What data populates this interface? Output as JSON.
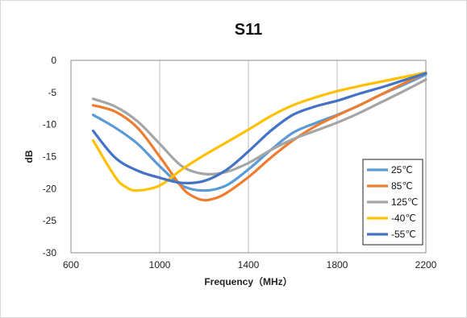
{
  "chart_data": {
    "type": "line",
    "title": "S11",
    "xlabel": "Frequency（MHz）",
    "ylabel": "dB",
    "xlim": [
      600,
      2200
    ],
    "ylim": [
      -30,
      0
    ],
    "xticks": [
      600,
      1000,
      1400,
      1800,
      2200
    ],
    "yticks": [
      0,
      -5,
      -10,
      -15,
      -20,
      -25,
      -30
    ],
    "grid": "vertical",
    "legend_position": "bottom-right",
    "series": [
      {
        "name": "25℃",
        "color": "#5b9bd5",
        "x": [
          700,
          800,
          900,
          1000,
          1100,
          1200,
          1300,
          1400,
          1500,
          1600,
          1700,
          1800,
          1900,
          2000,
          2100,
          2200
        ],
        "y": [
          -8.5,
          -10.5,
          -13,
          -16.5,
          -19.5,
          -20.3,
          -19.5,
          -17,
          -14,
          -11.3,
          -9.8,
          -8.5,
          -7,
          -5.3,
          -3.8,
          -2.2
        ]
      },
      {
        "name": "85℃",
        "color": "#ed7d31",
        "x": [
          700,
          800,
          900,
          1000,
          1100,
          1150,
          1200,
          1250,
          1300,
          1400,
          1500,
          1600,
          1700,
          1800,
          1900,
          2000,
          2100,
          2200
        ],
        "y": [
          -7,
          -8,
          -10.5,
          -15,
          -19.8,
          -21.2,
          -21.8,
          -21.5,
          -20.7,
          -18.2,
          -15.2,
          -12.5,
          -10.3,
          -8.6,
          -7,
          -5.3,
          -3.6,
          -1.9
        ]
      },
      {
        "name": "125℃",
        "color": "#a5a5a5",
        "x": [
          700,
          800,
          900,
          1000,
          1100,
          1200,
          1300,
          1400,
          1500,
          1600,
          1700,
          1800,
          1900,
          2000,
          2100,
          2200
        ],
        "y": [
          -6,
          -7.2,
          -9.5,
          -13,
          -16.5,
          -17.7,
          -17.4,
          -16,
          -14,
          -12.3,
          -11,
          -9.7,
          -8.2,
          -6.5,
          -4.8,
          -3
        ]
      },
      {
        "name": "-40℃",
        "color": "#ffc000",
        "x": [
          700,
          800,
          850,
          900,
          1000,
          1100,
          1200,
          1300,
          1400,
          1500,
          1600,
          1700,
          1800,
          1900,
          2000,
          2100,
          2200
        ],
        "y": [
          -12.5,
          -18.2,
          -19.8,
          -20.3,
          -19.5,
          -17,
          -14.8,
          -12.8,
          -10.8,
          -8.7,
          -7,
          -5.8,
          -4.8,
          -4,
          -3.3,
          -2.6,
          -1.9
        ]
      },
      {
        "name": "-55℃",
        "color": "#4472c4",
        "x": [
          700,
          800,
          900,
          1000,
          1100,
          1200,
          1300,
          1400,
          1500,
          1600,
          1700,
          1800,
          1900,
          2000,
          2100,
          2200
        ],
        "y": [
          -11,
          -15.2,
          -17.2,
          -18.3,
          -19.1,
          -18.8,
          -17.1,
          -14.2,
          -11,
          -8.5,
          -7.2,
          -6.3,
          -5.2,
          -4.2,
          -3.1,
          -2
        ]
      }
    ]
  }
}
